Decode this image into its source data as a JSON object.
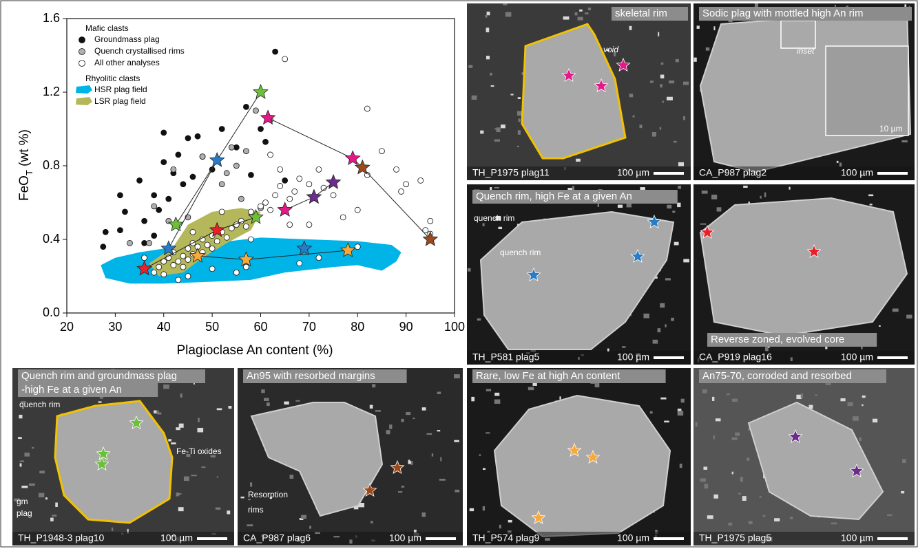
{
  "chart_data": {
    "type": "scatter",
    "xlabel": "Plagioclase An content (%)",
    "ylabel": {
      "main": "FeO",
      "sub": "T",
      "rest": " (wt %)"
    },
    "xlim": [
      20,
      100
    ],
    "xticks": [
      20,
      30,
      40,
      50,
      60,
      70,
      80,
      90,
      100
    ],
    "ylim": [
      0,
      1.6
    ],
    "yticks": [
      {
        "value": 0,
        "label": "0.0"
      },
      0.4,
      0.8,
      1.2,
      1.6
    ],
    "groups": [
      {
        "title": "Mafic clasts",
        "series": [
          {
            "name": "Groundmass plag",
            "marker": "circle",
            "color": "#111111",
            "x": [
              27.5,
              28,
              31,
              32,
              35,
              36,
              36,
              38,
              39,
              40,
              40,
              41,
              42,
              43,
              44,
              45,
              46,
              47,
              48,
              50,
              52,
              55,
              57,
              58,
              60,
              61,
              63,
              65,
              31,
              38
            ],
            "y": [
              0.36,
              0.44,
              0.64,
              0.55,
              0.72,
              0.5,
              0.38,
              0.42,
              0.56,
              0.98,
              0.82,
              0.62,
              0.76,
              0.86,
              0.7,
              0.95,
              0.74,
              0.96,
              0.85,
              0.78,
              1.0,
              0.9,
              1.12,
              0.75,
              1.0,
              0.93,
              1.42,
              0.72,
              0.45,
              0.64
            ]
          },
          {
            "name": "Quench crystallised rims",
            "marker": "circle",
            "color": "#b0b0b0",
            "x": [
              33,
              37,
              38,
              41,
              42,
              45,
              48,
              52,
              53,
              55,
              56,
              57,
              59,
              60,
              62,
              54
            ],
            "y": [
              0.38,
              0.38,
              0.58,
              0.5,
              0.78,
              0.52,
              0.85,
              0.7,
              0.76,
              0.8,
              0.62,
              0.88,
              1.1,
              0.57,
              1.05,
              0.9
            ]
          },
          {
            "name": "All other analyses",
            "marker": "circle",
            "color": "#ffffff",
            "x": [
              38,
              39,
              40,
              40,
              41,
              42,
              42,
              43,
              44,
              44,
              45,
              45,
              46,
              46,
              47,
              48,
              48,
              49,
              50,
              50,
              51,
              52,
              53,
              54,
              55,
              56,
              57,
              58,
              59,
              60,
              61,
              62,
              63,
              64,
              66,
              67,
              68,
              70,
              72,
              73,
              75,
              77,
              80,
              82,
              82,
              85,
              88,
              89,
              90,
              93,
              94,
              95,
              95,
              65,
              62,
              64,
              57,
              55,
              43,
              45,
              50,
              36,
              58,
              66,
              68,
              72,
              80,
              46,
              52,
              70
            ],
            "y": [
              0.22,
              0.25,
              0.28,
              0.21,
              0.3,
              0.26,
              0.33,
              0.28,
              0.31,
              0.25,
              0.35,
              0.29,
              0.32,
              0.38,
              0.36,
              0.4,
              0.33,
              0.37,
              0.42,
              0.35,
              0.39,
              0.44,
              0.41,
              0.46,
              0.48,
              0.5,
              0.47,
              0.55,
              0.52,
              0.58,
              0.6,
              0.56,
              0.64,
              0.69,
              0.62,
              0.66,
              0.73,
              0.7,
              0.78,
              0.68,
              0.64,
              0.52,
              0.56,
              0.75,
              1.11,
              0.88,
              0.78,
              0.66,
              0.7,
              0.72,
              0.45,
              0.5,
              0.43,
              1.38,
              0.86,
              0.78,
              0.25,
              0.22,
              0.18,
              0.2,
              0.24,
              0.3,
              0.4,
              0.48,
              0.27,
              0.3,
              0.36,
              0.44,
              0.55,
              0.48
            ]
          }
        ]
      },
      {
        "title": "Rhyolitic clasts",
        "series": [
          {
            "name": "HSR plag field",
            "marker": "field",
            "color": "#00b4e8",
            "x": [
              27,
              30,
              35,
              40,
              50,
              60,
              70,
              80,
              87,
              89,
              88,
              85,
              80,
              75,
              65,
              58,
              50,
              40,
              33,
              28
            ],
            "y": [
              0.26,
              0.3,
              0.33,
              0.35,
              0.38,
              0.41,
              0.4,
              0.39,
              0.37,
              0.33,
              0.28,
              0.23,
              0.26,
              0.25,
              0.22,
              0.18,
              0.17,
              0.16,
              0.16,
              0.19
            ]
          },
          {
            "name": "LSR plag field",
            "marker": "field",
            "color": "#b5b85a",
            "x": [
              37,
              42,
              45,
              50,
              56,
              60,
              58,
              53,
              48,
              44,
              39
            ],
            "y": [
              0.27,
              0.36,
              0.48,
              0.55,
              0.57,
              0.55,
              0.45,
              0.38,
              0.3,
              0.22,
              0.2
            ]
          }
        ]
      }
    ],
    "stars": [
      {
        "x": [
          42.5,
          60
        ],
        "y": [
          0.48,
          1.2
        ],
        "colors": [
          "#6cbf3b",
          "#6cbf3b"
        ]
      },
      {
        "x": [
          41,
          51
        ],
        "y": [
          0.35,
          0.83
        ],
        "colors": [
          "#2a7bc6",
          "#2a7bc6"
        ]
      },
      {
        "x": [
          61.5,
          79,
          81,
          95
        ],
        "y": [
          1.06,
          0.84,
          0.79,
          0.4
        ],
        "colors": [
          "#e3198a",
          "#e3198a",
          "#9c4a1a",
          "#9c4a1a"
        ]
      },
      {
        "x": [
          36,
          51,
          59
        ],
        "y": [
          0.24,
          0.45,
          0.52
        ],
        "colors": [
          "#e8202a",
          "#e8202a",
          "#6cbf3b"
        ]
      },
      {
        "x": [
          47,
          57,
          78
        ],
        "y": [
          0.31,
          0.29,
          0.34
        ],
        "colors": [
          "#f7a93b",
          "#f7a93b",
          "#f7a93b"
        ]
      },
      {
        "x": [
          65,
          71,
          75
        ],
        "y": [
          0.56,
          0.63,
          0.71
        ],
        "colors": [
          "#e3198a",
          "#6b2d8a",
          "#6b2d8a"
        ]
      },
      {
        "x": [
          69
        ],
        "y": [
          0.35
        ],
        "colors": [
          "#2a7bc6"
        ]
      }
    ]
  },
  "panels": [
    {
      "title": [
        "skeletal rim"
      ],
      "notes": [
        "void"
      ],
      "sample": "TH_P1975 plag11",
      "scale": "100 µm"
    },
    {
      "title": [
        "Sodic plag with mottled high An rim"
      ],
      "notes": [
        "inset",
        "10 µm"
      ],
      "sample": "CA_P987 plag2",
      "scale": "100 µm"
    },
    {
      "title": [
        "Quench rim, high Fe at a given An"
      ],
      "notes": [
        "quench rim",
        "quench rim"
      ],
      "sample": "TH_P581 plag5",
      "scale": "100 µm"
    },
    {
      "title": [
        "Reverse zoned, evolved core"
      ],
      "notes": [],
      "sample": "CA_P919 plag16",
      "scale": "100 µm"
    },
    {
      "title": [
        "Quench rim and groundmass plag",
        "-high Fe at a given An"
      ],
      "notes": [
        "quench rim",
        "Fe-Ti oxides",
        "gm",
        "plag"
      ],
      "sample": "TH_P1948-3 plag10",
      "scale": "100 µm"
    },
    {
      "title": [
        "An95 with resorbed margins"
      ],
      "notes": [
        "Resorption",
        "rims"
      ],
      "sample": "CA_P987 plag6",
      "scale": "100 µm"
    },
    {
      "title": [
        "Rare, low Fe at high An content"
      ],
      "notes": [],
      "sample": "TH_P574 plag9",
      "scale": "100 µm"
    },
    {
      "title": [
        "An75-70, corroded and resorbed"
      ],
      "notes": [],
      "sample": "TH_P1975 plag5",
      "scale": "100 µm"
    }
  ]
}
